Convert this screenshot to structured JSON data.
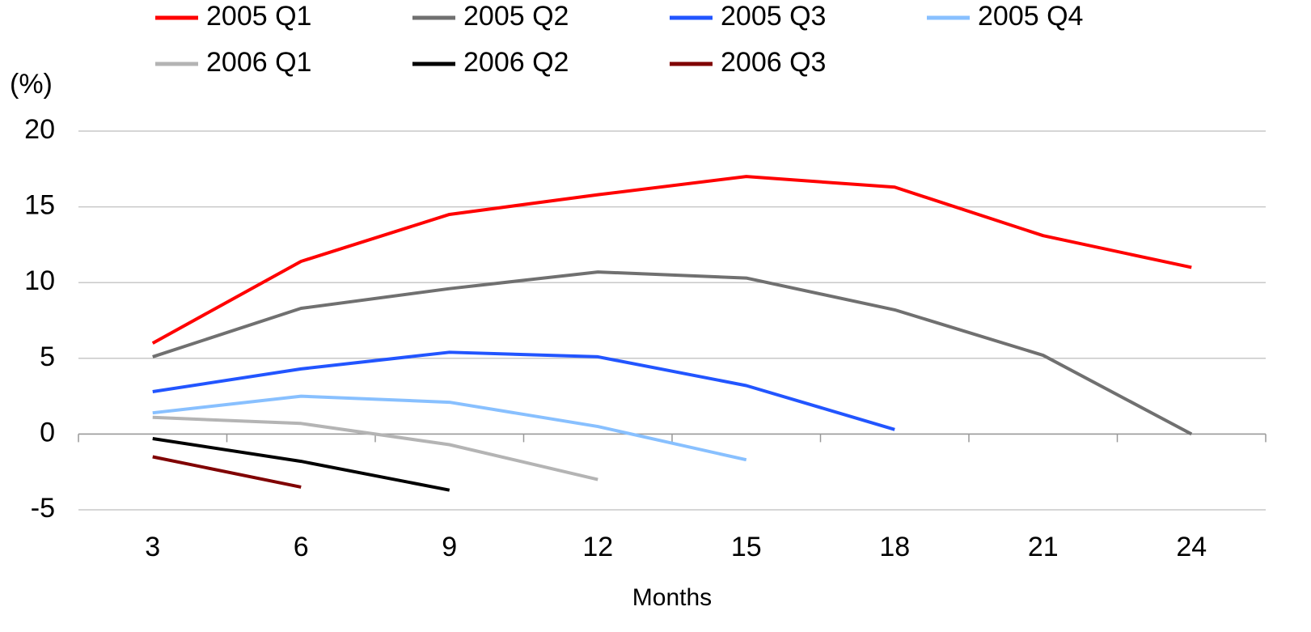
{
  "chart_data": {
    "type": "line",
    "ylabel": "(%)",
    "xlabel": "Months",
    "categories": [
      "3",
      "6",
      "9",
      "12",
      "15",
      "18",
      "21",
      "24"
    ],
    "series": [
      {
        "name": "2005 Q1",
        "color": "#ff0000",
        "values": [
          6.0,
          11.4,
          14.5,
          15.8,
          17.0,
          16.3,
          13.1,
          11.0
        ]
      },
      {
        "name": "2005 Q2",
        "color": "#707070",
        "values": [
          5.1,
          8.3,
          9.6,
          10.7,
          10.3,
          8.2,
          5.2,
          0
        ]
      },
      {
        "name": "2005 Q3",
        "color": "#2255ff",
        "values": [
          2.8,
          4.3,
          5.4,
          5.1,
          3.2,
          0.3,
          null,
          null
        ]
      },
      {
        "name": "2005 Q4",
        "color": "#88c0ff",
        "values": [
          1.4,
          2.5,
          2.1,
          0.5,
          -1.7,
          null,
          null,
          null
        ]
      },
      {
        "name": "2006 Q1",
        "color": "#b4b4b4",
        "values": [
          1.1,
          0.7,
          -0.7,
          -3.0,
          null,
          null,
          null,
          null
        ]
      },
      {
        "name": "2006 Q2",
        "color": "#000000",
        "values": [
          -0.3,
          -1.8,
          -3.7,
          null,
          null,
          null,
          null,
          null
        ]
      },
      {
        "name": "2006 Q3",
        "color": "#800000",
        "values": [
          -1.5,
          -3.5,
          null,
          null,
          null,
          null,
          null,
          null
        ]
      }
    ],
    "ylim": [
      -5,
      20
    ],
    "yticks": [
      -5,
      0,
      5,
      10,
      15,
      20
    ],
    "grid": true,
    "legend": "top"
  }
}
